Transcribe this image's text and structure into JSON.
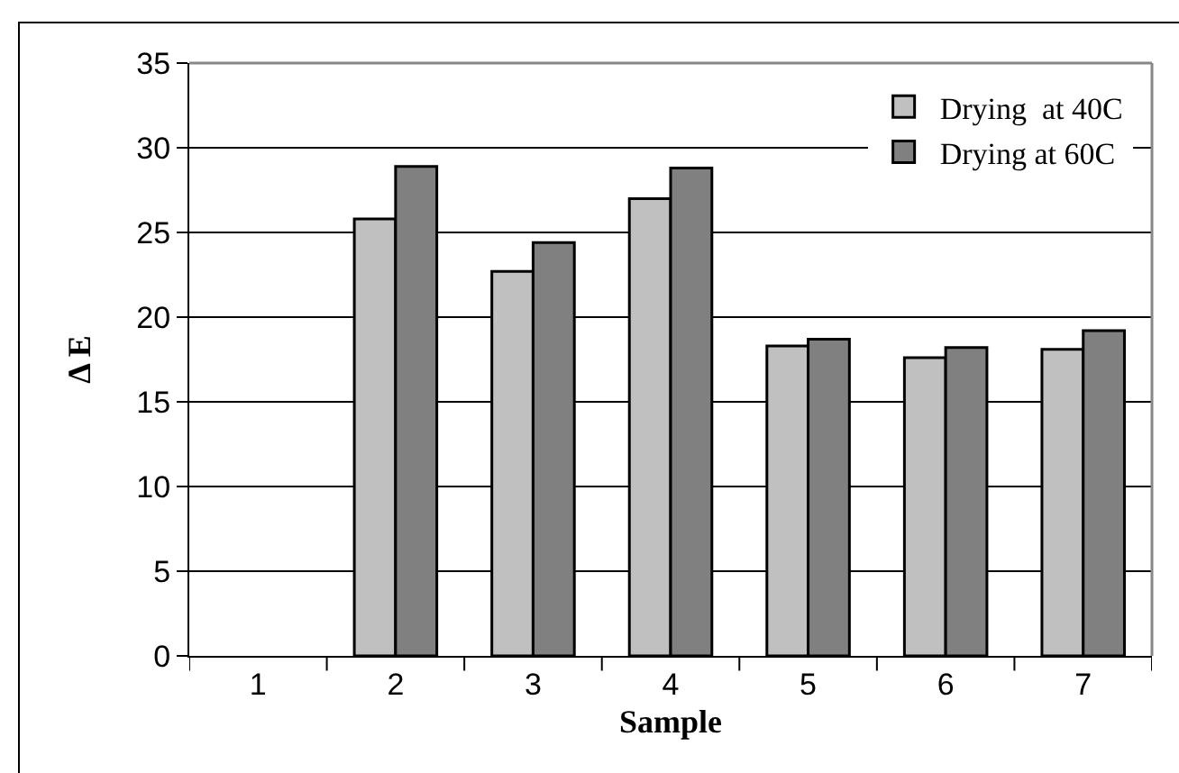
{
  "chart_data": {
    "type": "bar",
    "xlabel": "Sample",
    "ylabel": "Δ E",
    "categories": [
      "1",
      "2",
      "3",
      "4",
      "5",
      "6",
      "7"
    ],
    "series": [
      {
        "name": "Drying  at 40C",
        "color": "#c0c0c0",
        "values": [
          null,
          25.8,
          22.7,
          27.0,
          18.3,
          17.6,
          18.1
        ]
      },
      {
        "name": "Drying at 60C",
        "color": "#808080",
        "values": [
          null,
          28.9,
          24.4,
          28.8,
          18.7,
          18.2,
          19.2
        ]
      }
    ],
    "ylim": [
      0,
      35
    ],
    "yticks": [
      0,
      5,
      10,
      15,
      20,
      25,
      30,
      35
    ],
    "grid": "y",
    "legend": "top right"
  }
}
